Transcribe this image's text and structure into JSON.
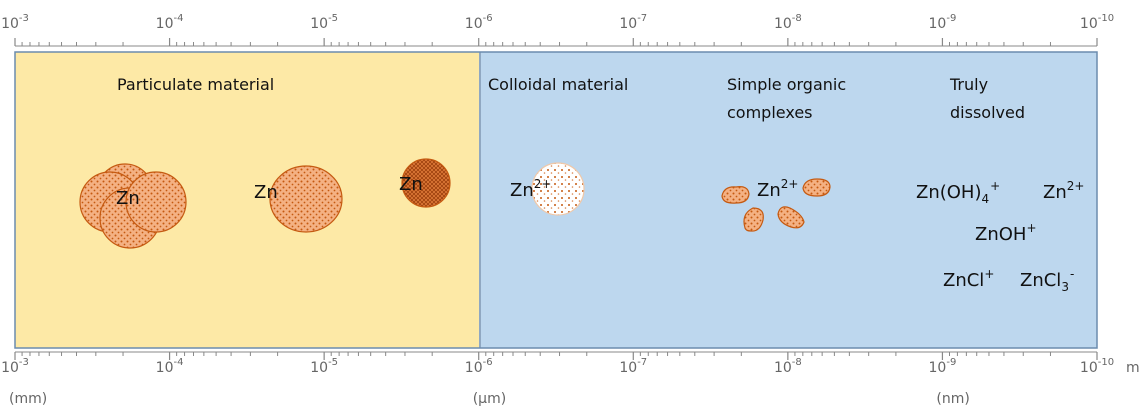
{
  "axis": {
    "ticks": [
      {
        "base": "10",
        "exponent": "-3"
      },
      {
        "base": "10",
        "exponent": "-4"
      },
      {
        "base": "10",
        "exponent": "-5"
      },
      {
        "base": "10",
        "exponent": "-6"
      },
      {
        "base": "10",
        "exponent": "-7"
      },
      {
        "base": "10",
        "exponent": "-8"
      },
      {
        "base": "10",
        "exponent": "-9"
      },
      {
        "base": "10",
        "exponent": "-10"
      }
    ],
    "unit": "m",
    "unit_labels": [
      "(mm)",
      "(µm)",
      "(nm)"
    ]
  },
  "regions": [
    {
      "lines": [
        "Particulate material"
      ]
    },
    {
      "lines": [
        "Colloidal material"
      ]
    },
    {
      "lines": [
        "Simple organic",
        "complexes"
      ]
    },
    {
      "lines": [
        "Truly",
        "dissolved"
      ]
    }
  ],
  "species": [
    {
      "text": "Zn"
    },
    {
      "text": "Zn"
    },
    {
      "text": "Zn"
    },
    {
      "text": "Zn",
      "superscript": "2+"
    },
    {
      "text": "Zn",
      "superscript": "2+"
    },
    {
      "text": "Zn(OH)",
      "subscript": "4",
      "superscript": "+"
    },
    {
      "text": "Zn",
      "superscript": "2+"
    },
    {
      "text": "ZnOH",
      "superscript": "+"
    },
    {
      "text": "ZnCl",
      "superscript": "+"
    },
    {
      "text": "ZnCl",
      "subscript": "3",
      "superscript": "-"
    }
  ]
}
